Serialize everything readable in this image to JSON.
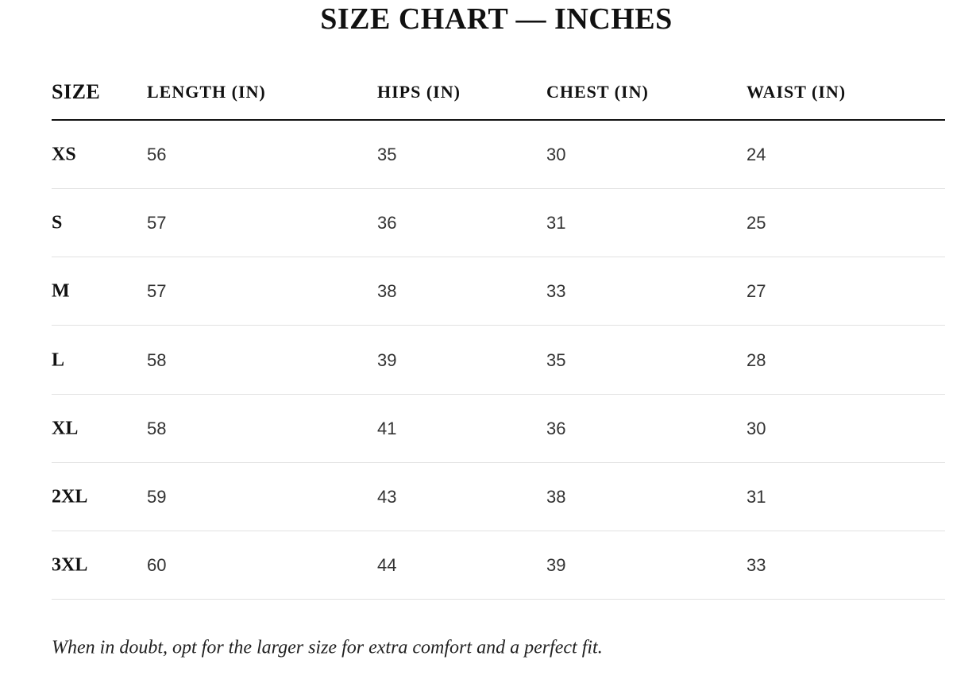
{
  "title": "SIZE CHART — INCHES",
  "table": {
    "header": [
      "SIZE",
      "LENGTH (IN)",
      "HIPS (IN)",
      "CHEST (IN)",
      "WAIST (IN)"
    ],
    "rows": [
      [
        "XS",
        56,
        35,
        30,
        24
      ],
      [
        "S",
        57,
        36,
        31,
        25
      ],
      [
        "M",
        57,
        38,
        33,
        27
      ],
      [
        "L",
        58,
        39,
        35,
        28
      ],
      [
        "XL",
        58,
        41,
        36,
        30
      ],
      [
        "2XL",
        59,
        43,
        38,
        31
      ],
      [
        "3XL",
        60,
        44,
        39,
        33
      ]
    ]
  },
  "note": "When in doubt, opt for the larger size for extra comfort and a perfect fit."
}
